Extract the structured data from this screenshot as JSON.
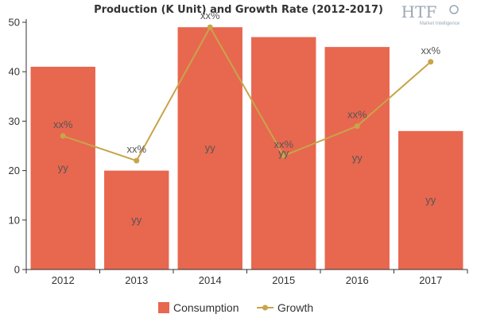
{
  "chart_data": {
    "type": "bar",
    "title": "Production (K Unit) and Growth Rate (2012-2017)",
    "categories": [
      "2012",
      "2013",
      "2014",
      "2015",
      "2016",
      "2017"
    ],
    "series": [
      {
        "name": "Consumption",
        "type": "bar",
        "values": [
          41,
          20,
          49,
          47,
          45,
          28
        ],
        "labels": [
          "yy",
          "yy",
          "yy",
          "yy",
          "yy",
          "yy"
        ],
        "color": "#e8674f"
      },
      {
        "name": "Growth",
        "type": "line",
        "values": [
          27,
          22,
          49,
          23,
          29,
          42
        ],
        "labels": [
          "xx%",
          "xx%",
          "xx%",
          "xx%",
          "xx%",
          "xx%"
        ],
        "color": "#c8a44a"
      }
    ],
    "ylim": [
      0,
      50
    ],
    "yticks": [
      0,
      10,
      20,
      30,
      40,
      50
    ],
    "grid": false,
    "legend": "bottom-center"
  },
  "logo": {
    "text": "HTF",
    "subtitle": "Market Intelligence"
  }
}
